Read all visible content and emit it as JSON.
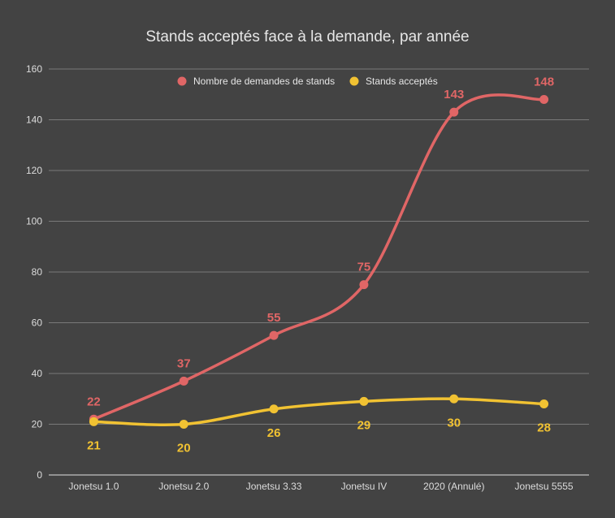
{
  "chart_data": {
    "type": "line",
    "title": "Stands acceptés face à la demande, par année",
    "categories": [
      "Jonetsu 1.0",
      "Jonetsu 2.0",
      "Jonetsu 3.33",
      "Jonetsu IV",
      "2020 (Annulé)",
      "Jonetsu 5555"
    ],
    "series": [
      {
        "name": "Nombre de demandes de stands",
        "color": "#e06666",
        "values": [
          22,
          37,
          55,
          75,
          143,
          148
        ]
      },
      {
        "name": "Stands acceptés",
        "color": "#f1c232",
        "values": [
          21,
          20,
          26,
          29,
          30,
          28
        ]
      }
    ],
    "ylim": [
      0,
      160
    ],
    "yticks": [
      0,
      20,
      40,
      60,
      80,
      100,
      120,
      140,
      160
    ],
    "grid": true,
    "legend_position": "top",
    "smooth": true,
    "colors": {
      "background": "#434343",
      "grid": "#7a7a7a",
      "text": "#e6e6e6"
    }
  }
}
